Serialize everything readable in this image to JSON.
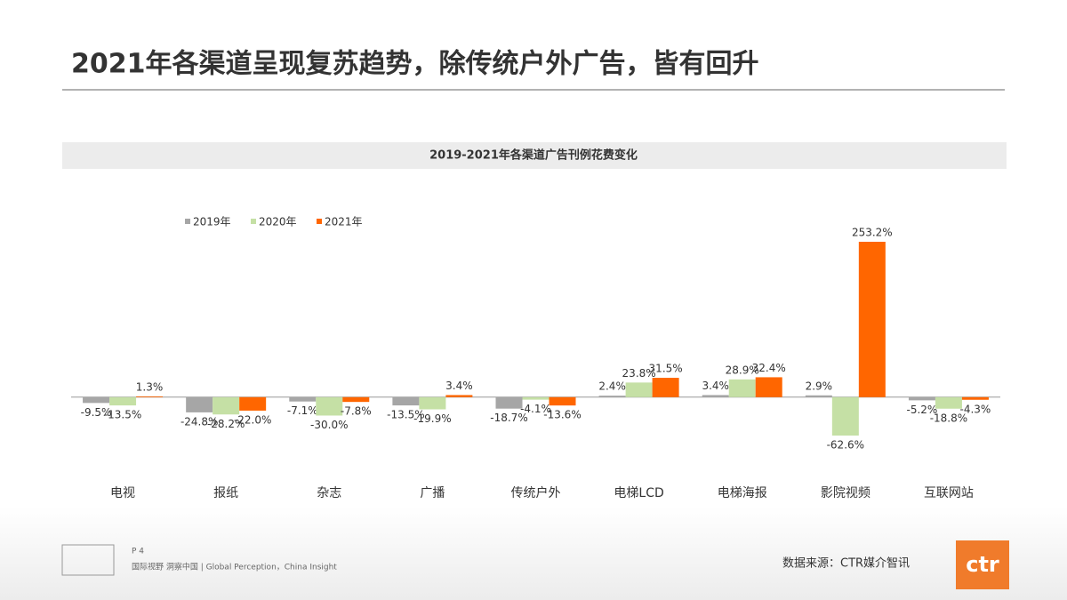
{
  "header": {
    "title": "2021年各渠道呈现复苏趋势，除传统户外广告，皆有回升"
  },
  "chart_data": {
    "type": "bar",
    "title": "2019-2021年各渠道广告刊例花费变化",
    "categories": [
      "电视",
      "报纸",
      "杂志",
      "广播",
      "传统户外",
      "电梯LCD",
      "电梯海报",
      "影院视频",
      "互联网站"
    ],
    "series": [
      {
        "name": "2019年",
        "color": "#a6a6a6",
        "values": [
          -9.5,
          -24.8,
          -7.1,
          -13.5,
          -18.7,
          2.4,
          3.4,
          2.9,
          -5.2
        ],
        "value_labels": [
          "-9.5%",
          "-24.8%",
          "-7.1%",
          "-13.5%",
          "-18.7%",
          "2.4%",
          "3.4%",
          "2.9%",
          "-5.2%"
        ]
      },
      {
        "name": "2020年",
        "color": "#c5e0a5",
        "values": [
          -13.5,
          -28.2,
          -30.0,
          -19.9,
          -4.1,
          23.8,
          28.9,
          -62.6,
          -18.8
        ],
        "value_labels": [
          "-13.5%",
          "-28.2%",
          "-30.0%",
          "-19.9%",
          "-4.1%",
          "23.8%",
          "28.9%",
          "-62.6%",
          "-18.8%"
        ]
      },
      {
        "name": "2021年",
        "color": "#ff6600",
        "values": [
          1.3,
          -22.0,
          -7.8,
          3.4,
          -13.6,
          31.5,
          32.4,
          253.2,
          -4.3
        ],
        "value_labels": [
          "1.3%",
          "-22.0%",
          "-7.8%",
          "3.4%",
          "-13.6%",
          "31.5%",
          "32.4%",
          "253.2%",
          "-4.3%"
        ]
      }
    ],
    "legend": "top-left"
  },
  "footer": {
    "page": "P 4",
    "slogan": "国际视野 洞察中国 | Global Perception，China Insight",
    "source": "数据来源：CTR媒介智讯",
    "logo": "ctr"
  }
}
